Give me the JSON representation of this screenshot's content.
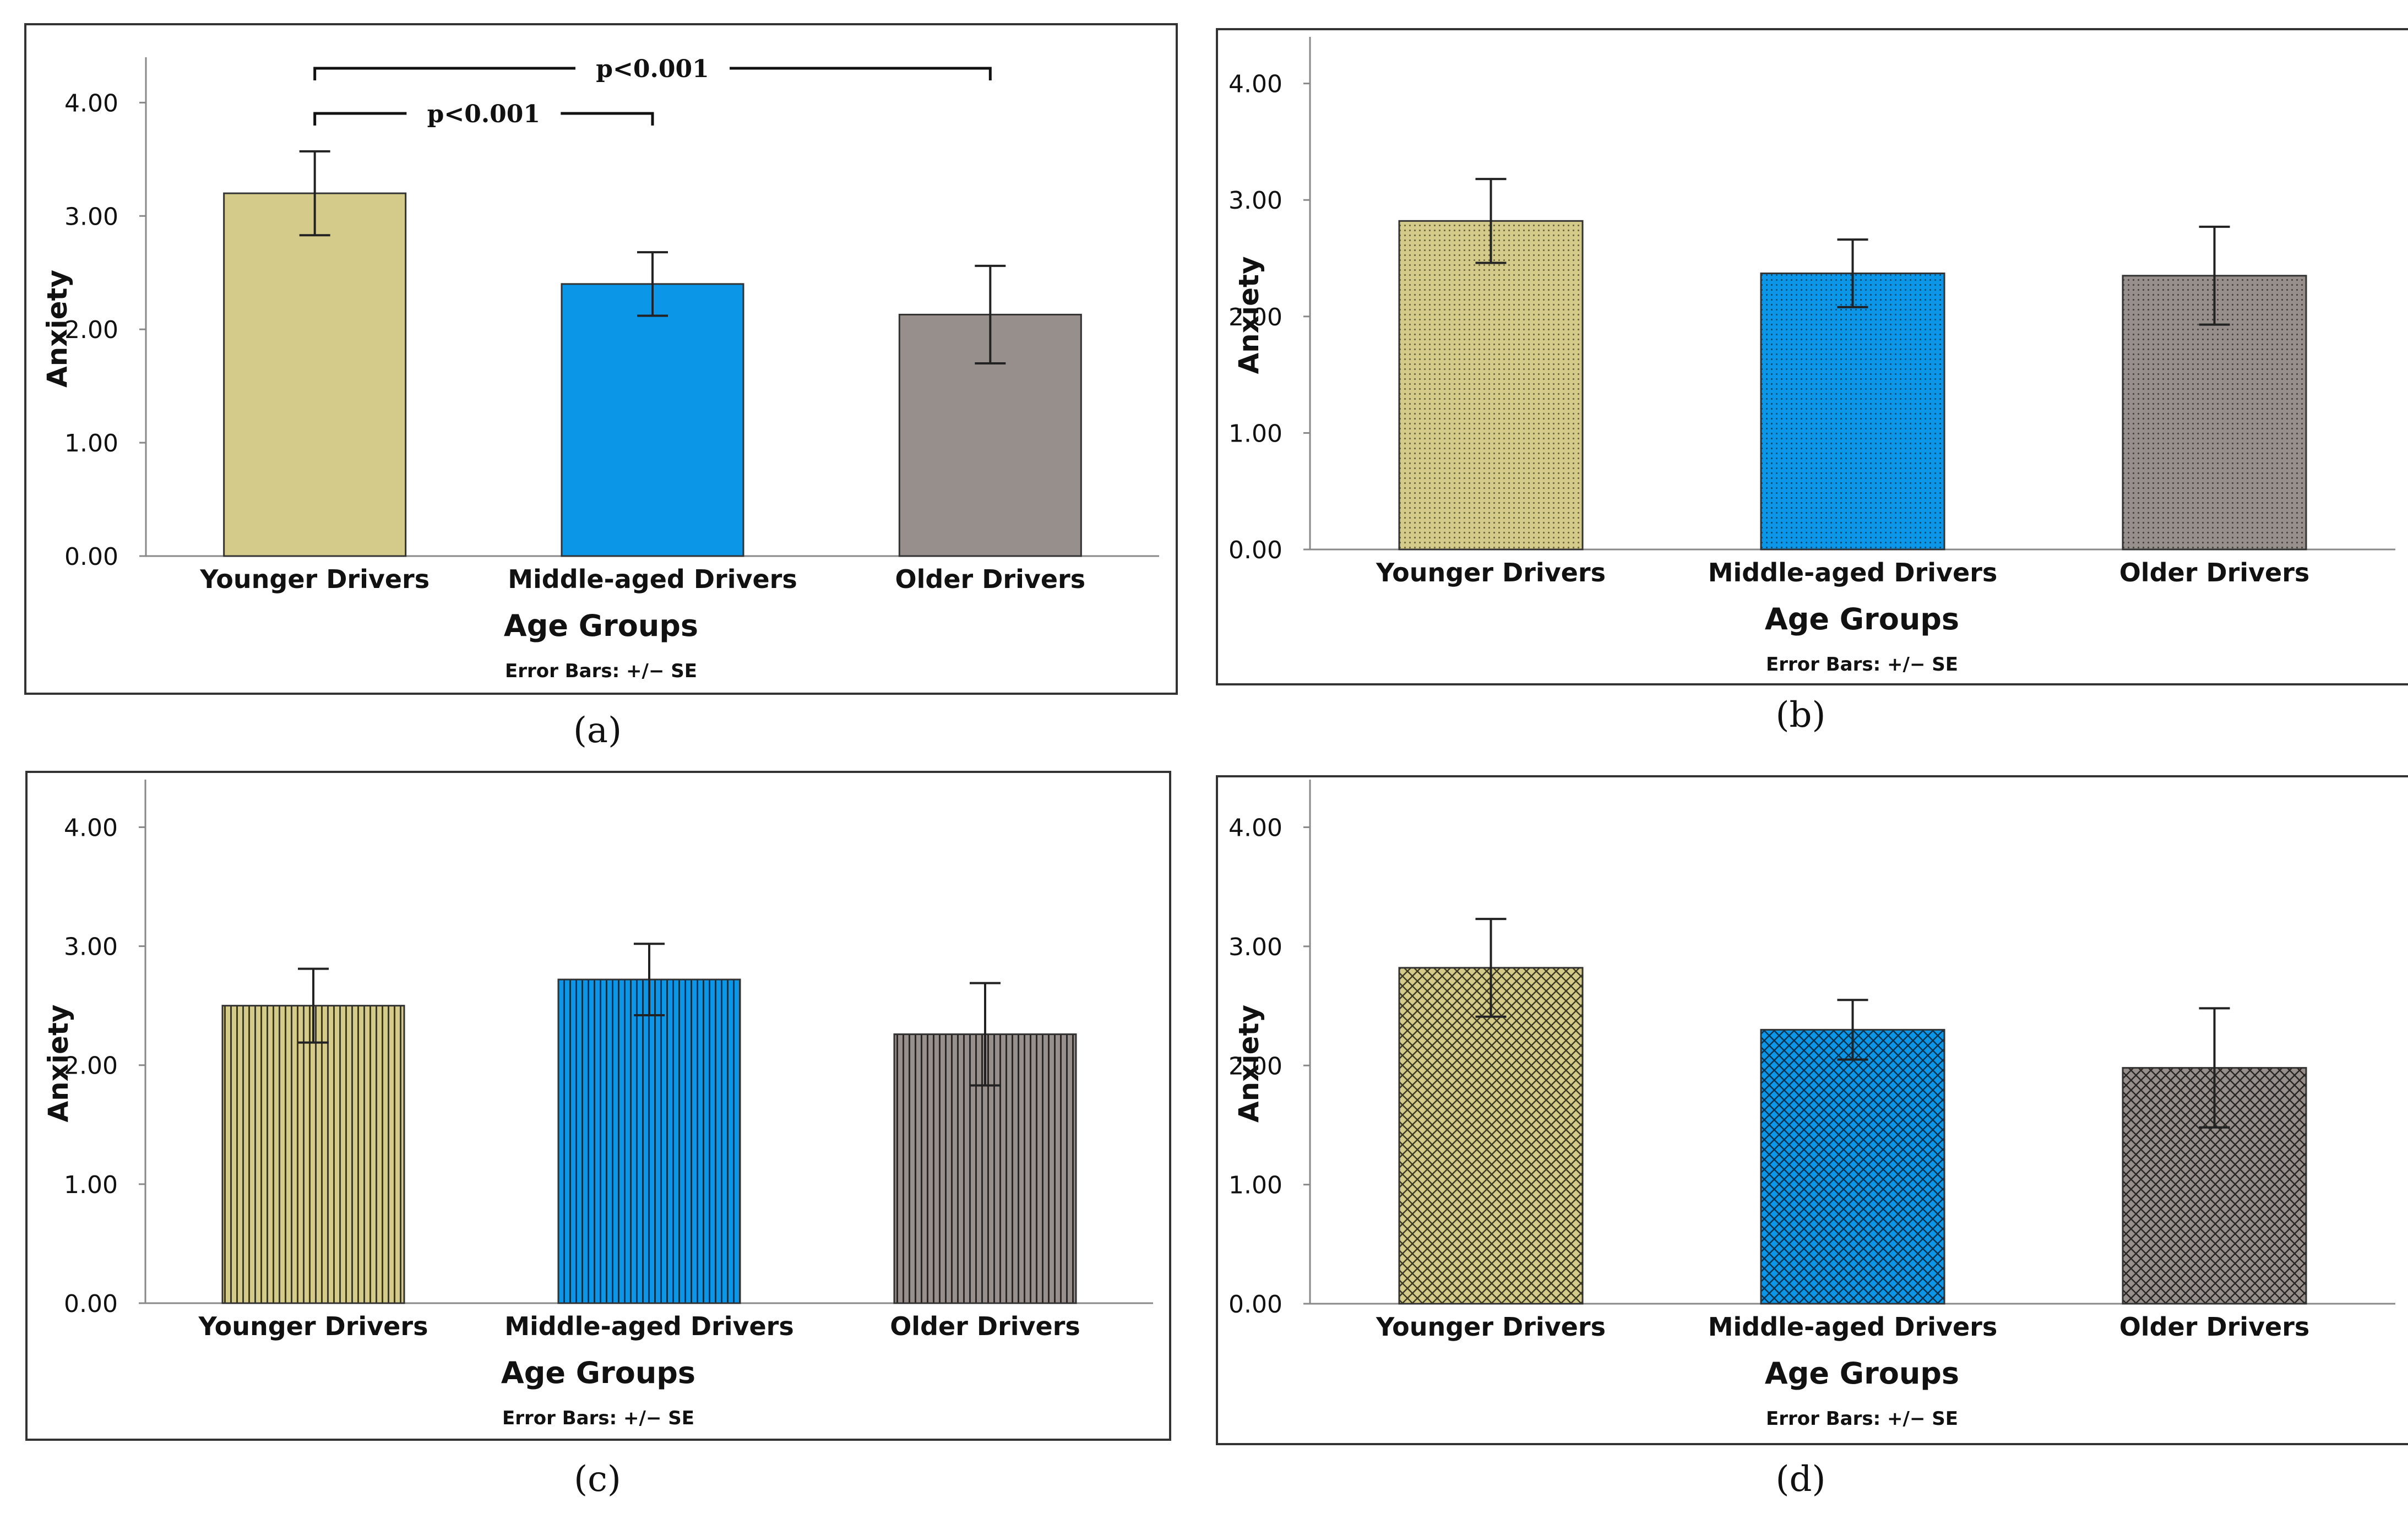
{
  "colors": {
    "younger": "#d4cb8a",
    "middle": "#0b96e8",
    "older": "#968f8b",
    "axis": "#888888",
    "frame": "#333333",
    "errorbar": "#222222"
  },
  "chart_data": [
    {
      "panel": "a",
      "caption": "(a)",
      "type": "bar",
      "pattern": "solid",
      "categories": [
        "Younger Drivers",
        "Middle-aged Drivers",
        "Older Drivers"
      ],
      "values": [
        3.2,
        2.4,
        2.13
      ],
      "errors": [
        0.37,
        0.28,
        0.43
      ],
      "xlabel": "Age Groups",
      "ylabel": "Anxiety",
      "yticks": [
        "0.00",
        "1.00",
        "2.00",
        "3.00",
        "4.00"
      ],
      "ylim": [
        0,
        4.4
      ],
      "footnote": "Error Bars: +/− SE",
      "significance": [
        {
          "from": 0,
          "to": 1,
          "label": "p<0.001",
          "level": 1
        },
        {
          "from": 0,
          "to": 2,
          "label": "p<0.001",
          "level": 2
        }
      ]
    },
    {
      "panel": "b",
      "caption": "(b)",
      "type": "bar",
      "pattern": "dots",
      "categories": [
        "Younger Drivers",
        "Middle-aged Drivers",
        "Older Drivers"
      ],
      "values": [
        2.82,
        2.37,
        2.35
      ],
      "errors": [
        0.36,
        0.29,
        0.42
      ],
      "xlabel": "Age Groups",
      "ylabel": "Anxiety",
      "yticks": [
        "0.00",
        "1.00",
        "2.00",
        "3.00",
        "4.00"
      ],
      "ylim": [
        0,
        4.4
      ],
      "footnote": "Error Bars: +/− SE",
      "significance": []
    },
    {
      "panel": "c",
      "caption": "(c)",
      "type": "bar",
      "pattern": "vlines",
      "categories": [
        "Younger Drivers",
        "Middle-aged Drivers",
        "Older Drivers"
      ],
      "values": [
        2.5,
        2.72,
        2.26
      ],
      "errors": [
        0.31,
        0.3,
        0.43
      ],
      "xlabel": "Age Groups",
      "ylabel": "Anxiety",
      "yticks": [
        "0.00",
        "1.00",
        "2.00",
        "3.00",
        "4.00"
      ],
      "ylim": [
        0,
        4.4
      ],
      "footnote": "Error Bars: +/− SE",
      "significance": []
    },
    {
      "panel": "d",
      "caption": "(d)",
      "type": "bar",
      "pattern": "crosshatch",
      "categories": [
        "Younger Drivers",
        "Middle-aged Drivers",
        "Older Drivers"
      ],
      "values": [
        2.82,
        2.3,
        1.98
      ],
      "errors": [
        0.41,
        0.25,
        0.5
      ],
      "xlabel": "Age Groups",
      "ylabel": "Anxiety",
      "yticks": [
        "0.00",
        "1.00",
        "2.00",
        "3.00",
        "4.00"
      ],
      "ylim": [
        0,
        4.4
      ],
      "footnote": "Error Bars: +/− SE",
      "significance": []
    }
  ]
}
